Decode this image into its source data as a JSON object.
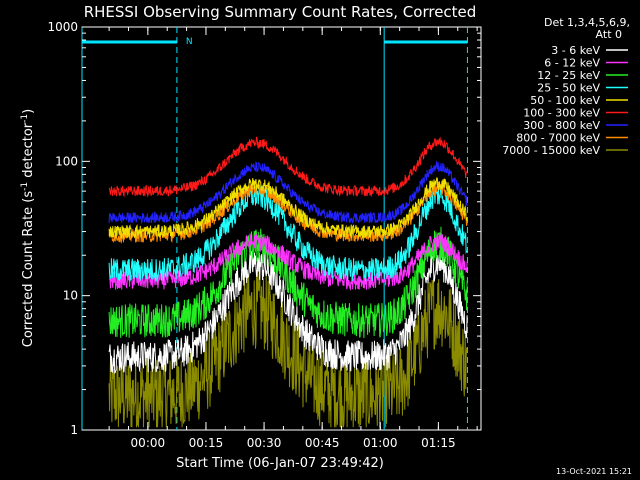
{
  "chart_data": {
    "type": "line",
    "title": "RHESSI Observing Summary Count Rates, Corrected",
    "xlabel": "Start Time (06-Jan-07 23:49:42)",
    "ylabel": "Corrected Count Rate (s",
    "ylabel_sup1": "-1",
    "ylabel_mid": " detector",
    "ylabel_sup2": "-1",
    "ylabel_end": ")",
    "y_scale": "log",
    "ylim": [
      1,
      1000
    ],
    "xlim_minutes": [
      -7,
      96
    ],
    "y_ticks": [
      {
        "value": 1,
        "label": "1"
      },
      {
        "value": 10,
        "label": "10"
      },
      {
        "value": 100,
        "label": "100"
      },
      {
        "value": 1000,
        "label": "1000"
      }
    ],
    "x_ticks": [
      {
        "minute": 10,
        "label": "00:00"
      },
      {
        "minute": 25,
        "label": "00:15"
      },
      {
        "minute": 40,
        "label": "00:30"
      },
      {
        "minute": 55,
        "label": "00:45"
      },
      {
        "minute": 70,
        "label": "01:00"
      },
      {
        "minute": 85,
        "label": "01:15"
      }
    ],
    "grid": false,
    "legend_position": "top-right outside",
    "legend_header": [
      "Det 1,3,4,5,6,9,",
      "Att 0"
    ],
    "night_intervals_minutes": [
      [
        -7,
        17.5
      ],
      [
        71,
        92.5
      ]
    ],
    "night_bar_label": "N",
    "footer_date": "13-Oct-2021 15:21",
    "series": [
      {
        "name": "3 - 6 keV",
        "color": "#ffffff",
        "min": 3.5,
        "max": 17,
        "noise": 0.12
      },
      {
        "name": "6 - 12 keV",
        "color": "#ff33ff",
        "min": 13,
        "max": 25,
        "noise": 0.07
      },
      {
        "name": "12 - 25 keV",
        "color": "#22ee22",
        "min": 6.5,
        "max": 24,
        "noise": 0.13
      },
      {
        "name": "25 - 50 keV",
        "color": "#22ffff",
        "min": 15.5,
        "max": 55,
        "noise": 0.09
      },
      {
        "name": "50 - 100 keV",
        "color": "#f0e000",
        "min": 30,
        "max": 68,
        "noise": 0.05
      },
      {
        "name": "100 - 300 keV",
        "color": "#ff1a1a",
        "min": 60,
        "max": 138,
        "noise": 0.04
      },
      {
        "name": "300 - 800 keV",
        "color": "#2222ff",
        "min": 38,
        "max": 90,
        "noise": 0.04
      },
      {
        "name": "800 - 7000 keV",
        "color": "#ff8c00",
        "min": 28,
        "max": 62,
        "noise": 0.05
      },
      {
        "name": "7000 - 15000 keV",
        "color": "#8b8b00",
        "min": 1.8,
        "max": 8,
        "noise": 0.3
      }
    ],
    "peaks_minutes": [
      38,
      85
    ]
  }
}
